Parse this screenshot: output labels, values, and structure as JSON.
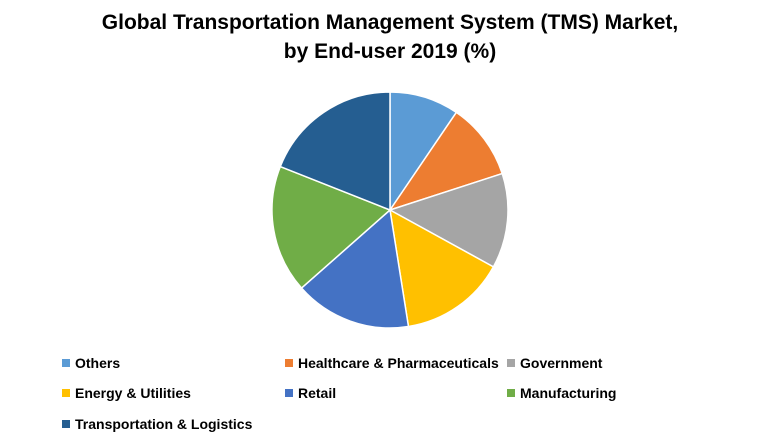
{
  "chart_data": {
    "type": "pie",
    "title_lines": [
      "Global Transportation Management System (TMS) Market,",
      "by End-user 2019 (%)"
    ],
    "categories": [
      "Others",
      "Healthcare & Pharmaceuticals",
      "Government",
      "Energy & Utilities",
      "Retail",
      "Manufacturing",
      "Transportation & Logistics"
    ],
    "values": [
      9.5,
      10.5,
      13,
      14.5,
      16,
      17.5,
      19
    ],
    "colors": [
      "#5B9BD5",
      "#ED7D31",
      "#A5A5A5",
      "#FFC000",
      "#4472C4",
      "#70AD47",
      "#255E91"
    ],
    "legend_position": "bottom",
    "slice_borders": "#ffffff"
  }
}
